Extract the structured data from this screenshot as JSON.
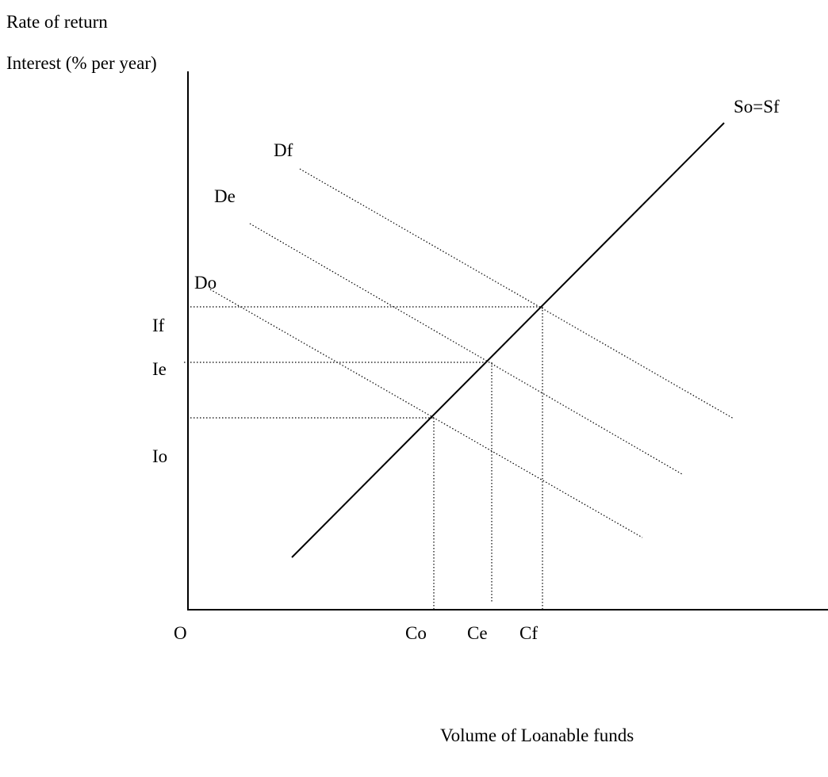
{
  "axes": {
    "y_title_1": "Rate of return",
    "y_title_2": "Interest (% per year)",
    "x_title": "Volume of Loanable funds",
    "origin": "O"
  },
  "curves": {
    "supply": "So=Sf",
    "demand_f": "Df",
    "demand_e": "De",
    "demand_o": "Do"
  },
  "interest_levels": [
    "If",
    "Ie",
    "Io"
  ],
  "quantities": [
    "Co",
    "Ce",
    "Cf"
  ]
}
